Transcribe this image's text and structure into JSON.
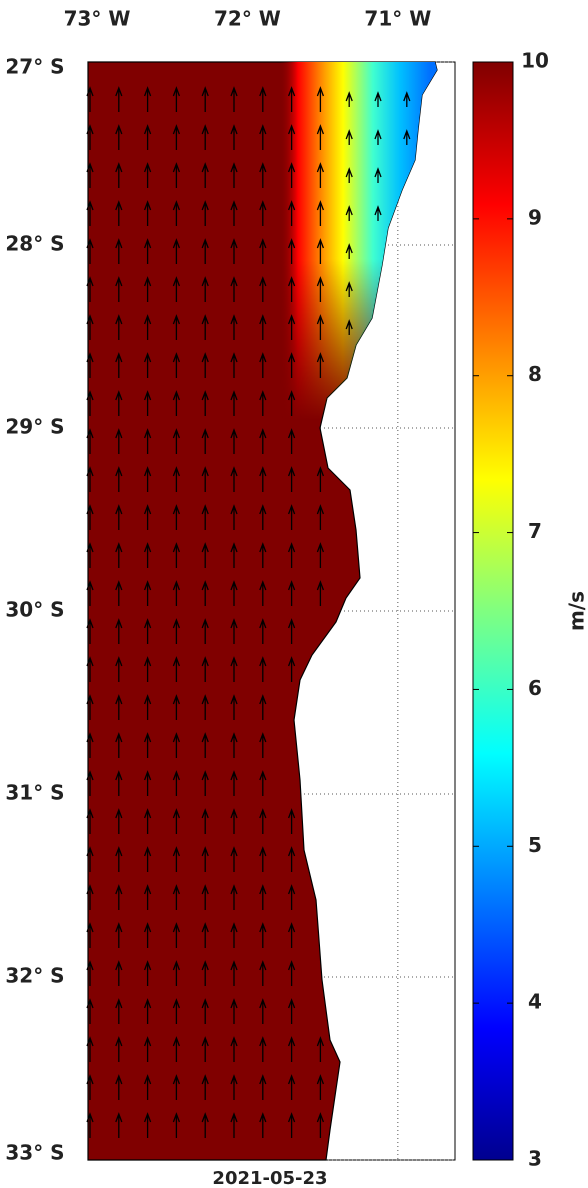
{
  "map": {
    "xlim": [
      -73.06,
      -70.62
    ],
    "ylim": [
      -33,
      -27
    ],
    "xticks": [
      {
        "value": -73,
        "label": "73° W"
      },
      {
        "value": -72,
        "label": "72° W"
      },
      {
        "value": -71,
        "label": "71° W"
      }
    ],
    "yticks": [
      {
        "value": -27,
        "label": "27° S"
      },
      {
        "value": -28,
        "label": "28° S"
      },
      {
        "value": -29,
        "label": "29° S"
      },
      {
        "value": -30,
        "label": "30° S"
      },
      {
        "value": -31,
        "label": "31° S"
      },
      {
        "value": -32,
        "label": "32° S"
      },
      {
        "value": -33,
        "label": "33° S"
      }
    ],
    "grid": true,
    "date": "2021-05-23",
    "colorbar": {
      "lim": [
        3,
        10
      ],
      "ticks": [
        3,
        4,
        5,
        6,
        7,
        8,
        9,
        10
      ],
      "label": "m/s"
    }
  }
}
